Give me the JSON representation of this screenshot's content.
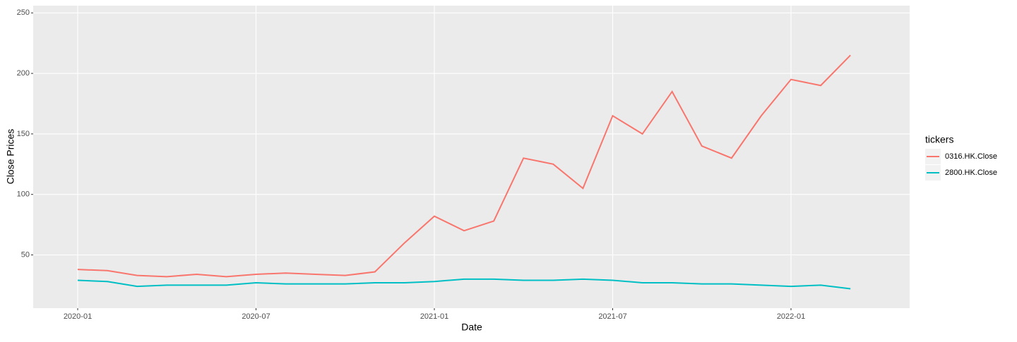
{
  "chart_data": {
    "type": "line",
    "x_label": "Date",
    "y_label": "Close Prices",
    "legend_title": "tickers",
    "x": [
      "2020-01",
      "2020-02",
      "2020-03",
      "2020-04",
      "2020-05",
      "2020-06",
      "2020-07",
      "2020-08",
      "2020-09",
      "2020-10",
      "2020-11",
      "2020-12",
      "2021-01",
      "2021-02",
      "2021-03",
      "2021-04",
      "2021-05",
      "2021-06",
      "2021-07",
      "2021-08",
      "2021-09",
      "2021-10",
      "2021-11",
      "2021-12",
      "2022-01",
      "2022-02",
      "2022-03"
    ],
    "series": [
      {
        "name": "0316.HK.Close",
        "color": "#F8766D",
        "values": [
          38,
          37,
          33,
          32,
          34,
          32,
          34,
          35,
          34,
          33,
          36,
          60,
          82,
          70,
          78,
          130,
          125,
          105,
          165,
          150,
          185,
          140,
          130,
          165,
          195,
          190,
          215
        ]
      },
      {
        "name": "2800.HK.Close",
        "color": "#00BFC4",
        "values": [
          29,
          28,
          24,
          25,
          25,
          25,
          27,
          26,
          26,
          26,
          27,
          27,
          28,
          30,
          30,
          29,
          29,
          30,
          29,
          27,
          27,
          26,
          26,
          25,
          24,
          25,
          22
        ]
      }
    ],
    "xticks": [
      "2020-01",
      "2020-07",
      "2021-01",
      "2021-07",
      "2022-01"
    ],
    "ylim": [
      6,
      256
    ],
    "yticks": [
      50,
      100,
      150,
      200,
      250
    ],
    "grid": true,
    "legend": "right"
  }
}
